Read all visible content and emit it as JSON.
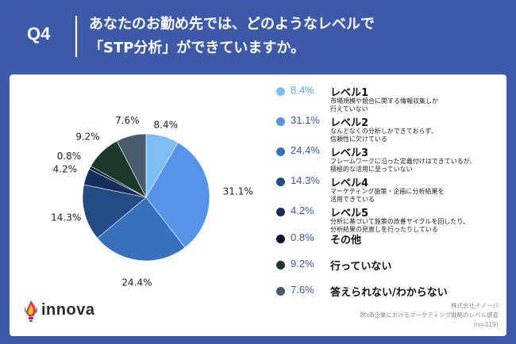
{
  "header": {
    "q_label": "Q4",
    "title_line1": "あなたのお勤め先では、どのようなレベルで",
    "title_line2": "「STP分析」ができていますか。"
  },
  "chart_data": {
    "type": "pie",
    "title": "",
    "start_angle_deg": 0,
    "direction": "clockwise",
    "legend_position": "right",
    "slices": [
      {
        "pct_label": "8.4%",
        "value": 8.4,
        "color": "#7dbef5",
        "name": "レベル1",
        "desc": [
          "市場規模や競合に関する情報収集しか",
          "行えていない"
        ]
      },
      {
        "pct_label": "31.1%",
        "value": 31.1,
        "color": "#5595e8",
        "name": "レベル2",
        "desc": [
          "なんとなくの分析しかできておらず、",
          "信頼性に欠けている"
        ]
      },
      {
        "pct_label": "24.4%",
        "value": 24.4,
        "color": "#3a71bd",
        "name": "レベル3",
        "desc": [
          "フレームワークに沿った定義付けはできているが、",
          "積極的な活用に至っていない"
        ]
      },
      {
        "pct_label": "14.3%",
        "value": 14.3,
        "color": "#234b85",
        "name": "レベル4",
        "desc": [
          "マーケティング施策・企画に分析結果を",
          "活用できている"
        ]
      },
      {
        "pct_label": "4.2%",
        "value": 4.2,
        "color": "#172d5e",
        "name": "レベル5",
        "desc": [
          "分析に基づいて施策の改善サイクルを回したり、",
          "分析結果の見直しを行ったりしている"
        ]
      },
      {
        "pct_label": "0.8%",
        "value": 0.8,
        "color": "#0b1833",
        "name": "その他",
        "desc": []
      },
      {
        "pct_label": "9.2%",
        "value": 9.2,
        "color": "#1c3a2c",
        "name": "行っていない",
        "desc": []
      },
      {
        "pct_label": "7.6%",
        "value": 7.6,
        "color": "#4a5b6b",
        "name": "答えられない/わからない",
        "desc": []
      }
    ]
  },
  "logo": {
    "text": "innova",
    "icon": "flame-logo-icon"
  },
  "footer": {
    "line1": "株式会社イノーバ",
    "line2": "BtoB企業におけるマーケティング戦略のレベル調査",
    "line3": "(n=119)"
  }
}
